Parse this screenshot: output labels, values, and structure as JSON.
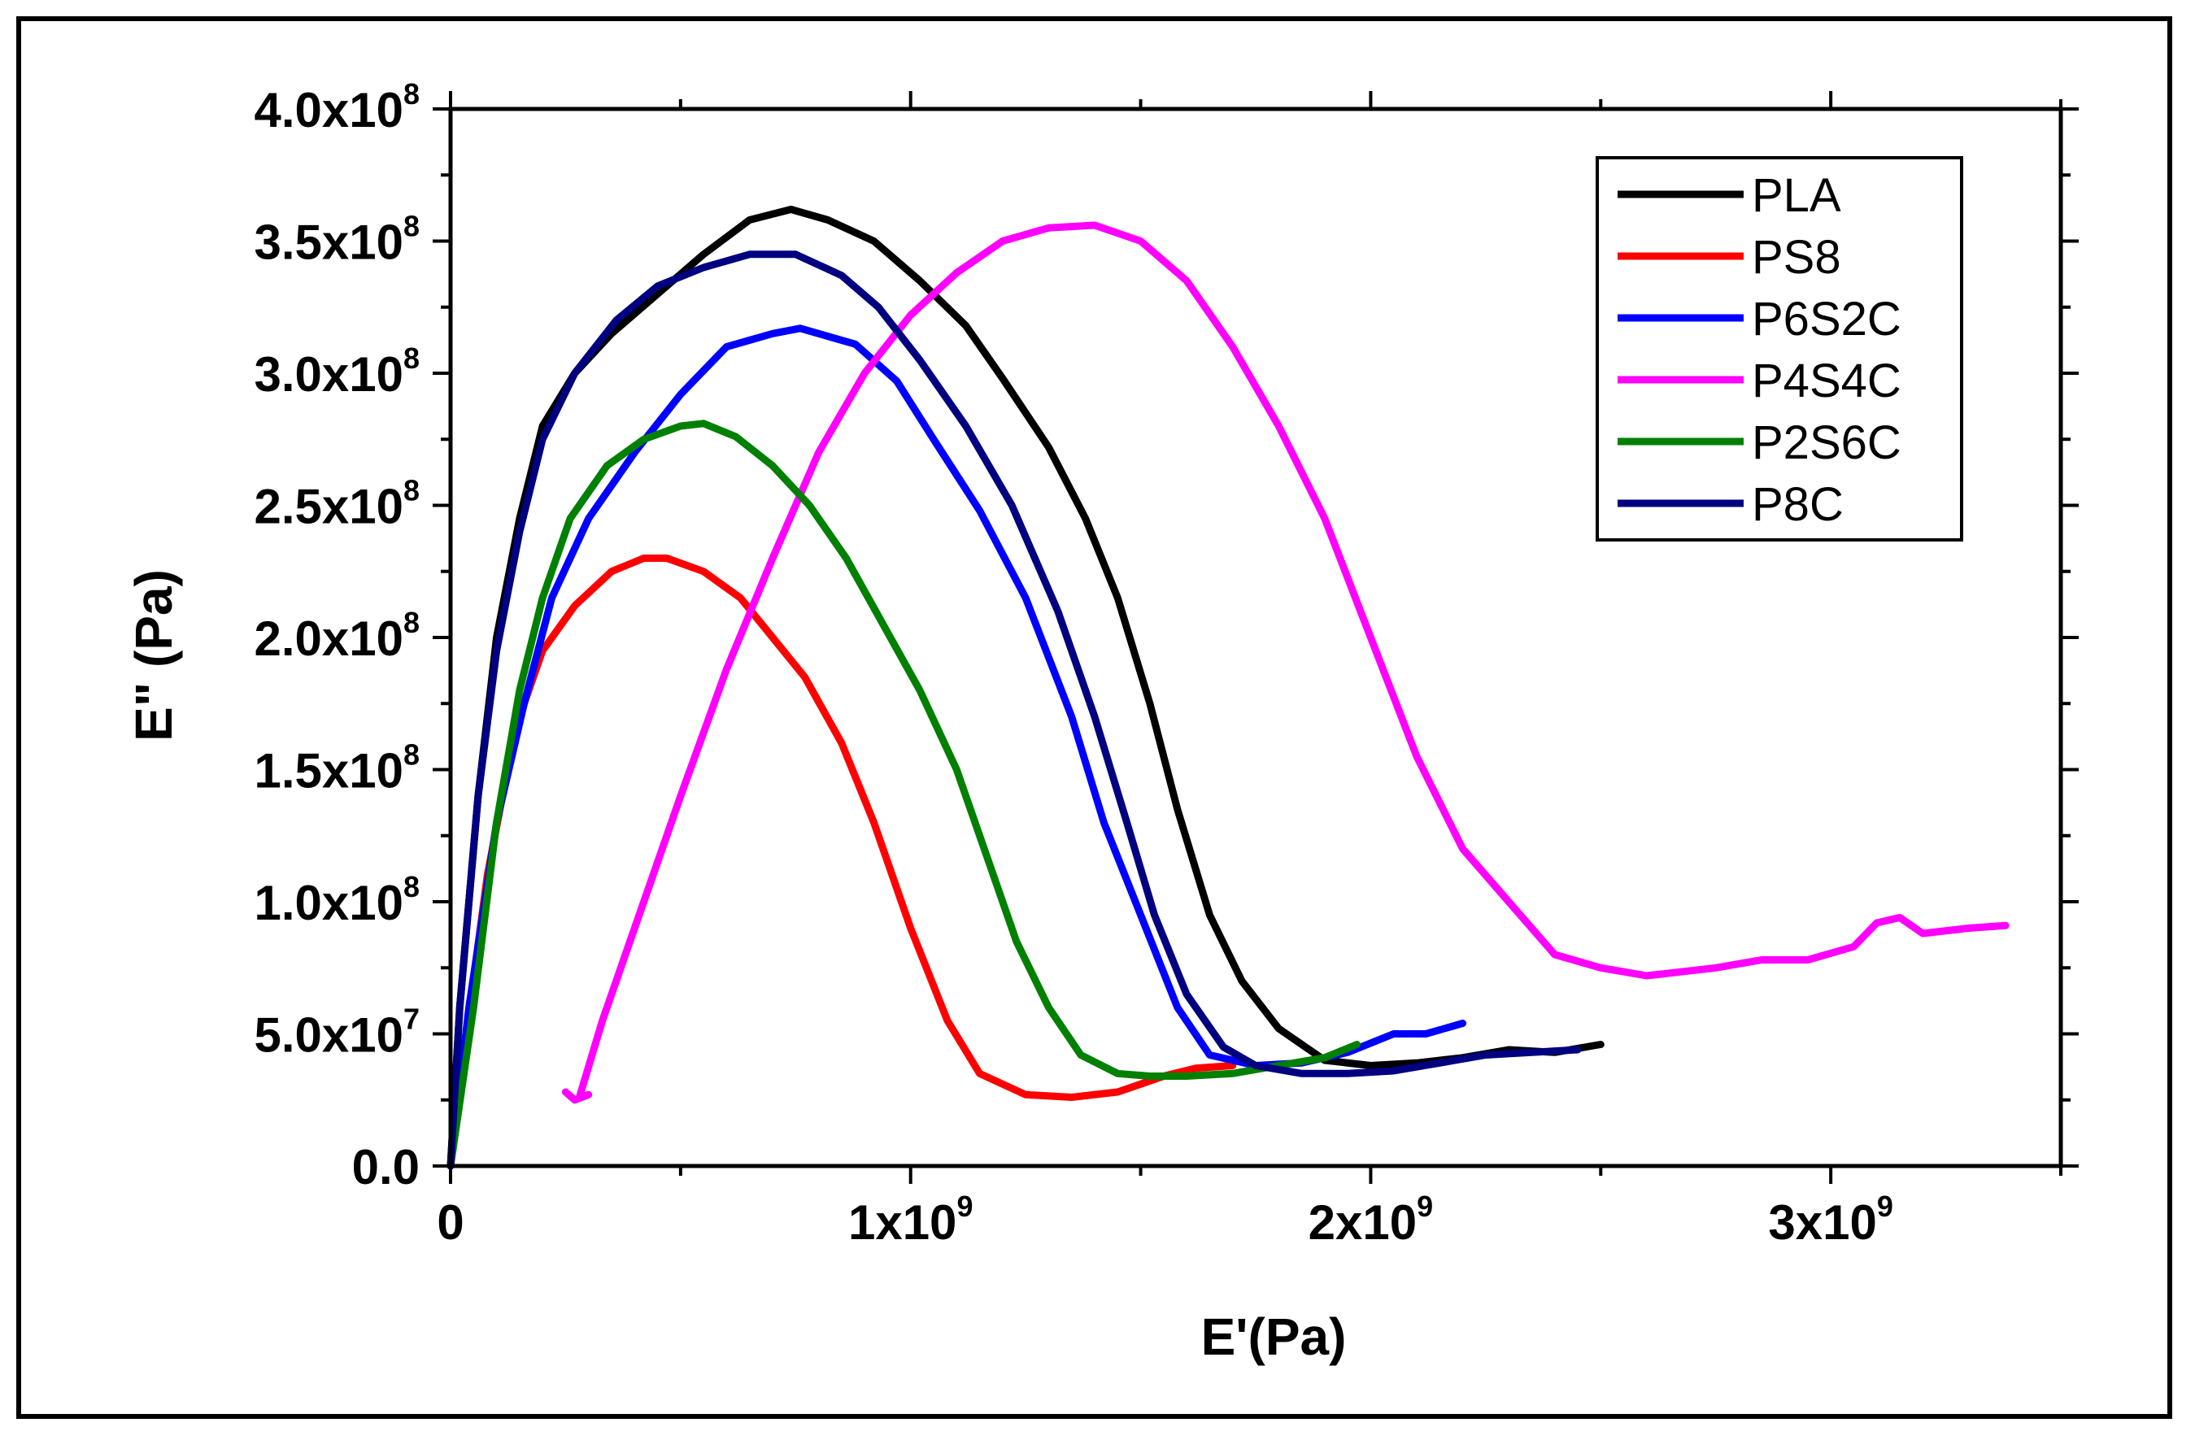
{
  "chart_data": {
    "type": "line",
    "title": "",
    "xlabel": "E'(Pa)",
    "ylabel": "E\" (Pa)",
    "xlim": [
      0,
      3500000000
    ],
    "ylim": [
      0,
      400000000
    ],
    "x_ticks": [
      {
        "value": 0,
        "mant": "0",
        "exp": ""
      },
      {
        "value": 1000000000,
        "mant": "1x10",
        "exp": "9"
      },
      {
        "value": 2000000000,
        "mant": "2x10",
        "exp": "9"
      },
      {
        "value": 3000000000,
        "mant": "3x10",
        "exp": "9"
      }
    ],
    "y_ticks": [
      {
        "value": 0,
        "mant": "0.0",
        "exp": ""
      },
      {
        "value": 50000000,
        "mant": "5.0x10",
        "exp": "7"
      },
      {
        "value": 100000000,
        "mant": "1.0x10",
        "exp": "8"
      },
      {
        "value": 150000000,
        "mant": "1.5x10",
        "exp": "8"
      },
      {
        "value": 200000000,
        "mant": "2.0x10",
        "exp": "8"
      },
      {
        "value": 250000000,
        "mant": "2.5x10",
        "exp": "8"
      },
      {
        "value": 300000000,
        "mant": "3.0x10",
        "exp": "8"
      },
      {
        "value": 350000000,
        "mant": "3.5x10",
        "exp": "8"
      },
      {
        "value": 400000000,
        "mant": "4.0x10",
        "exp": "8"
      }
    ],
    "legend_position": "top-right",
    "series": [
      {
        "name": "PLA",
        "color": "#000000",
        "x": [
          0,
          0.02,
          0.06,
          0.1,
          0.15,
          0.2,
          0.27,
          0.35,
          0.45,
          0.55,
          0.65,
          0.74,
          0.82,
          0.92,
          1.02,
          1.12,
          1.2,
          1.3,
          1.38,
          1.45,
          1.52,
          1.58,
          1.65,
          1.72,
          1.8,
          1.9,
          2.0,
          2.1,
          2.2,
          2.3,
          2.4,
          2.5
        ],
        "y": [
          0,
          60,
          140,
          200,
          245,
          280,
          300,
          315,
          330,
          345,
          358,
          362,
          358,
          350,
          335,
          318,
          298,
          272,
          245,
          215,
          175,
          135,
          95,
          70,
          52,
          40,
          38,
          39,
          41,
          44,
          43,
          46
        ]
      },
      {
        "name": "PS8",
        "color": "#ff0000",
        "x": [
          0,
          0.03,
          0.08,
          0.14,
          0.2,
          0.27,
          0.35,
          0.42,
          0.47,
          0.55,
          0.63,
          0.7,
          0.77,
          0.85,
          0.92,
          1.0,
          1.08,
          1.15,
          1.25,
          1.35,
          1.45,
          1.55,
          1.62,
          1.7
        ],
        "y": [
          0,
          45,
          110,
          165,
          195,
          212,
          225,
          230,
          230,
          225,
          215,
          200,
          185,
          160,
          130,
          90,
          55,
          35,
          27,
          26,
          28,
          34,
          37,
          38
        ]
      },
      {
        "name": "P6S2C",
        "color": "#0000ff",
        "x": [
          0,
          0.04,
          0.1,
          0.16,
          0.22,
          0.3,
          0.4,
          0.5,
          0.6,
          0.7,
          0.76,
          0.88,
          0.97,
          1.05,
          1.15,
          1.25,
          1.35,
          1.42,
          1.5,
          1.58,
          1.65,
          1.75,
          1.85,
          1.95,
          2.05,
          2.12,
          2.2
        ],
        "y": [
          0,
          60,
          130,
          175,
          215,
          245,
          270,
          292,
          310,
          315,
          317,
          311,
          297,
          275,
          248,
          215,
          170,
          130,
          95,
          60,
          42,
          38,
          39,
          43,
          50,
          50,
          54
        ]
      },
      {
        "name": "P4S4C",
        "color": "#ff00ff",
        "x": [
          0.25,
          0.27,
          0.3,
          0.28,
          0.33,
          0.4,
          0.5,
          0.6,
          0.7,
          0.8,
          0.9,
          1.0,
          1.1,
          1.2,
          1.3,
          1.4,
          1.5,
          1.6,
          1.7,
          1.8,
          1.9,
          2.0,
          2.1,
          2.2,
          2.3,
          2.4,
          2.5,
          2.6,
          2.65,
          2.75,
          2.85,
          2.95,
          3.05,
          3.1,
          3.15,
          3.2,
          3.3,
          3.38
        ],
        "y": [
          28,
          25,
          27,
          26,
          55,
          90,
          140,
          188,
          230,
          270,
          300,
          322,
          338,
          350,
          355,
          356,
          350,
          335,
          310,
          280,
          245,
          200,
          155,
          120,
          100,
          80,
          75,
          72,
          73,
          75,
          78,
          78,
          83,
          92,
          94,
          88,
          90,
          91
        ]
      },
      {
        "name": "P2S6C",
        "color": "#008000",
        "x": [
          0,
          0.05,
          0.1,
          0.15,
          0.2,
          0.26,
          0.34,
          0.42,
          0.5,
          0.55,
          0.62,
          0.7,
          0.78,
          0.86,
          0.94,
          1.02,
          1.1,
          1.17,
          1.23,
          1.3,
          1.37,
          1.45,
          1.52,
          1.6,
          1.7,
          1.8,
          1.9,
          1.97
        ],
        "y": [
          0,
          60,
          130,
          180,
          215,
          245,
          265,
          275,
          280,
          281,
          276,
          265,
          250,
          230,
          205,
          180,
          150,
          115,
          85,
          60,
          42,
          35,
          34,
          34,
          35,
          38,
          41,
          46
        ]
      },
      {
        "name": "P8C",
        "color": "#000080",
        "x": [
          0,
          0.02,
          0.06,
          0.1,
          0.15,
          0.2,
          0.27,
          0.36,
          0.45,
          0.55,
          0.65,
          0.75,
          0.85,
          0.93,
          1.02,
          1.12,
          1.22,
          1.32,
          1.4,
          1.47,
          1.53,
          1.6,
          1.68,
          1.75,
          1.85,
          1.95,
          2.05,
          2.15,
          2.25,
          2.35,
          2.45
        ],
        "y": [
          0,
          60,
          140,
          195,
          240,
          275,
          300,
          320,
          333,
          340,
          345,
          345,
          337,
          325,
          305,
          280,
          250,
          210,
          170,
          130,
          95,
          65,
          45,
          38,
          35,
          35,
          36,
          39,
          42,
          43,
          44
        ]
      }
    ]
  }
}
